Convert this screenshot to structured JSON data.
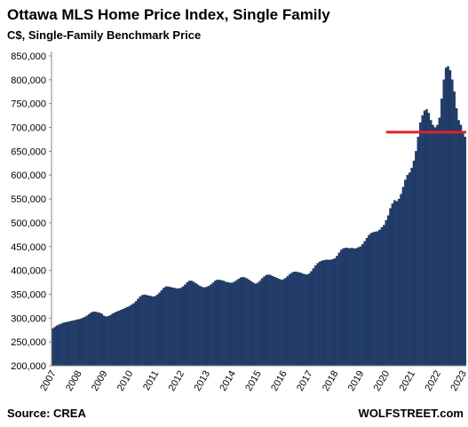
{
  "chart_data": {
    "type": "bar",
    "title": "Ottawa MLS Home Price Index, Single Family",
    "subtitle": "C$, Single-Family Benchmark Price",
    "source": "Source: CREA",
    "credit": "WOLFSTREET.com",
    "color": "#1f3d6e",
    "ylim": [
      200000,
      850000
    ],
    "yticks": [
      {
        "value": 200000,
        "label": "200,000"
      },
      {
        "value": 250000,
        "label": "250,000"
      },
      {
        "value": 300000,
        "label": "300,000"
      },
      {
        "value": 350000,
        "label": "350,000"
      },
      {
        "value": 400000,
        "label": "400,000"
      },
      {
        "value": 450000,
        "label": "450,000"
      },
      {
        "value": 500000,
        "label": "500,000"
      },
      {
        "value": 550000,
        "label": "550,000"
      },
      {
        "value": 600000,
        "label": "600,000"
      },
      {
        "value": 650000,
        "label": "650,000"
      },
      {
        "value": 700000,
        "label": "700,000"
      },
      {
        "value": 750000,
        "label": "750,000"
      },
      {
        "value": 800000,
        "label": "800,000"
      },
      {
        "value": 850000,
        "label": "850,000"
      }
    ],
    "reference_line": {
      "value": 690000,
      "from": "2020",
      "color": "#e0202a"
    },
    "categories": [
      "2007",
      null,
      null,
      null,
      null,
      null,
      null,
      null,
      null,
      null,
      null,
      null,
      "2008",
      null,
      null,
      null,
      null,
      null,
      null,
      null,
      null,
      null,
      null,
      null,
      "2009",
      null,
      null,
      null,
      null,
      null,
      null,
      null,
      null,
      null,
      null,
      null,
      "2010",
      null,
      null,
      null,
      null,
      null,
      null,
      null,
      null,
      null,
      null,
      null,
      "2011",
      null,
      null,
      null,
      null,
      null,
      null,
      null,
      null,
      null,
      null,
      null,
      "2012",
      null,
      null,
      null,
      null,
      null,
      null,
      null,
      null,
      null,
      null,
      null,
      "2013",
      null,
      null,
      null,
      null,
      null,
      null,
      null,
      null,
      null,
      null,
      null,
      "2014",
      null,
      null,
      null,
      null,
      null,
      null,
      null,
      null,
      null,
      null,
      null,
      "2015",
      null,
      null,
      null,
      null,
      null,
      null,
      null,
      null,
      null,
      null,
      null,
      "2016",
      null,
      null,
      null,
      null,
      null,
      null,
      null,
      null,
      null,
      null,
      null,
      "2017",
      null,
      null,
      null,
      null,
      null,
      null,
      null,
      null,
      null,
      null,
      null,
      "2018",
      null,
      null,
      null,
      null,
      null,
      null,
      null,
      null,
      null,
      null,
      null,
      "2019",
      null,
      null,
      null,
      null,
      null,
      null,
      null,
      null,
      null,
      null,
      null,
      "2020",
      null,
      null,
      null,
      null,
      null,
      null,
      null,
      null,
      null,
      null,
      null,
      "2021",
      null,
      null,
      null,
      null,
      null,
      null,
      null,
      null,
      null,
      null,
      null,
      "2022",
      null,
      null,
      null,
      null,
      null,
      null,
      null,
      null,
      null,
      null,
      null,
      "2023",
      null
    ],
    "values": [
      278000,
      281000,
      284000,
      286000,
      288000,
      290000,
      291000,
      292000,
      293000,
      294000,
      295000,
      296000,
      297000,
      298000,
      300000,
      302000,
      305000,
      308000,
      311000,
      313000,
      313000,
      312000,
      311000,
      309000,
      305000,
      303000,
      304000,
      306000,
      309000,
      311000,
      313000,
      315000,
      317000,
      319000,
      321000,
      323000,
      325000,
      328000,
      331000,
      335000,
      340000,
      345000,
      348000,
      349000,
      348000,
      347000,
      346000,
      345000,
      346000,
      349000,
      353000,
      358000,
      363000,
      366000,
      366000,
      365000,
      364000,
      363000,
      362000,
      362000,
      363000,
      366000,
      370000,
      375000,
      378000,
      378000,
      376000,
      373000,
      370000,
      367000,
      365000,
      364000,
      365000,
      367000,
      370000,
      374000,
      378000,
      380000,
      380000,
      379000,
      378000,
      376000,
      375000,
      374000,
      374000,
      376000,
      379000,
      382000,
      385000,
      386000,
      385000,
      383000,
      380000,
      377000,
      374000,
      372000,
      374000,
      378000,
      383000,
      387000,
      390000,
      391000,
      390000,
      388000,
      386000,
      384000,
      382000,
      380000,
      381000,
      384000,
      388000,
      392000,
      395000,
      397000,
      397000,
      396000,
      395000,
      393000,
      392000,
      391000,
      393000,
      398000,
      404000,
      410000,
      415000,
      418000,
      420000,
      421000,
      422000,
      422000,
      422000,
      423000,
      425000,
      430000,
      437000,
      443000,
      446000,
      447000,
      447000,
      446000,
      447000,
      446000,
      446000,
      448000,
      450000,
      455000,
      461000,
      468000,
      474000,
      478000,
      480000,
      481000,
      482000,
      485000,
      490000,
      495000,
      505000,
      515000,
      530000,
      540000,
      547000,
      545000,
      550000,
      560000,
      575000,
      590000,
      600000,
      605000,
      615000,
      630000,
      650000,
      680000,
      710000,
      725000,
      735000,
      738000,
      730000,
      715000,
      705000,
      700000,
      705000,
      720000,
      760000,
      800000,
      825000,
      828000,
      820000,
      800000,
      775000,
      740000,
      715000,
      705000,
      690000,
      680000
    ]
  }
}
